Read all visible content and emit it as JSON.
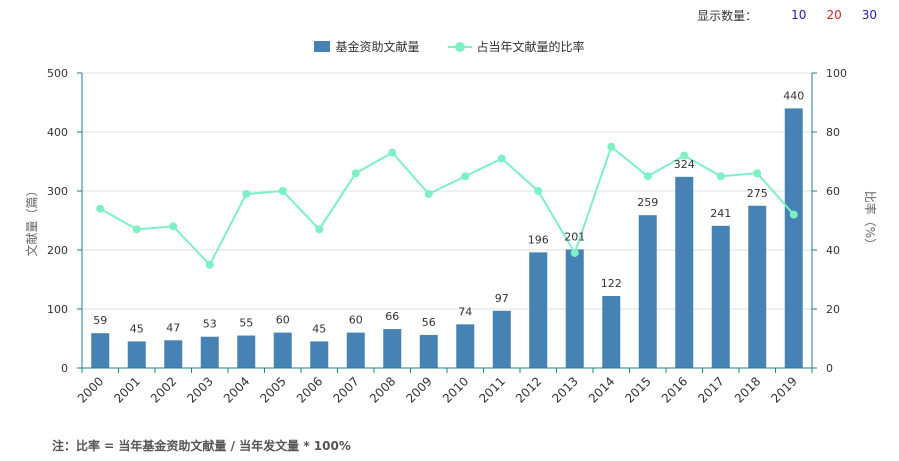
{
  "display_control": {
    "label": "显示数量：",
    "options": [
      {
        "label": "10",
        "color": "#2222aa"
      },
      {
        "label": "20",
        "color": "#dd2222"
      },
      {
        "label": "30",
        "color": "#2222aa"
      }
    ]
  },
  "footnote": "注：比率 = 当年基金资助文献量 / 当年发文量 * 100%",
  "colors": {
    "bar": "#4682b4",
    "line": "#7df0c4",
    "axis": "#1f7f8f"
  },
  "chart_data": {
    "type": "bar",
    "categories": [
      "2000",
      "2001",
      "2002",
      "2003",
      "2004",
      "2005",
      "2006",
      "2007",
      "2008",
      "2009",
      "2010",
      "2011",
      "2012",
      "2013",
      "2014",
      "2015",
      "2016",
      "2017",
      "2018",
      "2019"
    ],
    "series": [
      {
        "name": "基金资助文献量",
        "type": "bar",
        "axis": "left",
        "values": [
          59,
          45,
          47,
          53,
          55,
          60,
          45,
          60,
          66,
          56,
          74,
          97,
          196,
          201,
          122,
          259,
          324,
          241,
          275,
          440
        ]
      },
      {
        "name": "占当年文献量的比率",
        "type": "line",
        "axis": "right",
        "values": [
          54,
          47,
          48,
          35,
          59,
          60,
          47,
          66,
          73,
          59,
          65,
          71,
          60,
          39,
          75,
          65,
          72,
          65,
          66,
          52
        ]
      }
    ],
    "ylabel_left": "文献量（篇）",
    "ylabel_right": "比率（%）",
    "ylim_left": [
      0,
      500
    ],
    "ylim_right": [
      0,
      100
    ],
    "yticks_left": [
      "0",
      "100",
      "200",
      "300",
      "400",
      "500"
    ],
    "yticks_right": [
      "0",
      "20",
      "40",
      "60",
      "80",
      "100"
    ],
    "grid": true,
    "legend": "top-center"
  }
}
